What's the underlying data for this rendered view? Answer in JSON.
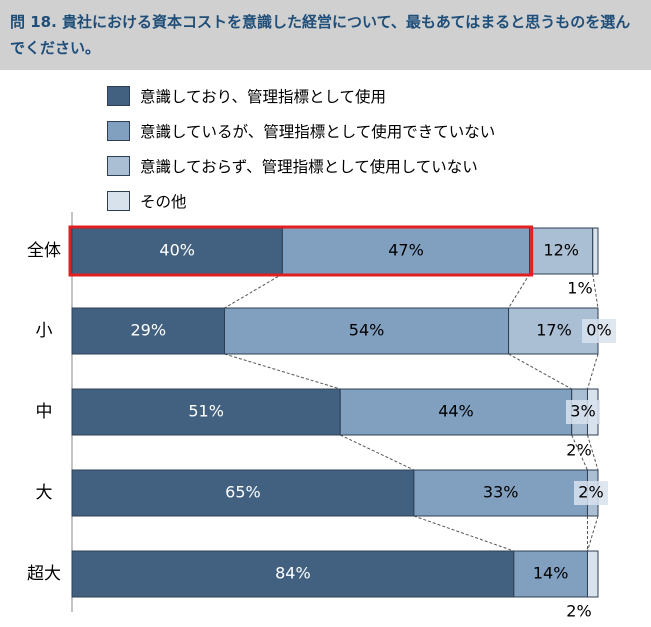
{
  "question": "問 18. 貴社における資本コストを意識した経営について、最もあてはまると思うものを選んでください。",
  "colors": {
    "header_bg": "#d0d0d0",
    "question_text": "#1f4e79",
    "highlight": "#e02020"
  },
  "chart_data": {
    "type": "bar",
    "orientation": "horizontal",
    "stacked": true,
    "percent_stacked": true,
    "title": "問 18. 貴社における資本コストを意識した経営について、最もあてはまると思うものを選んでください。",
    "categories": [
      "全体",
      "小",
      "中",
      "大",
      "超大"
    ],
    "series": [
      {
        "name": "意識しており、管理指標として使用",
        "color": "#426180",
        "label_color": "#ffffff",
        "values": [
          40,
          29,
          51,
          65,
          84
        ]
      },
      {
        "name": "意識しているが、管理指標として使用できていない",
        "color": "#819fbf",
        "label_color": "#000000",
        "values": [
          47,
          54,
          44,
          33,
          14
        ]
      },
      {
        "name": "意識しておらず、管理指標として使用していない",
        "color": "#aabfd3",
        "label_color": "#000000",
        "values": [
          12,
          17,
          3,
          2,
          0
        ]
      },
      {
        "name": "その他",
        "color": "#d8e2ed",
        "label_color": "#000000",
        "values": [
          1,
          0,
          2,
          0,
          2
        ]
      }
    ],
    "data_labels": [
      [
        "40%",
        "47%",
        "12%",
        "1%"
      ],
      [
        "29%",
        "54%",
        "17%",
        "0%"
      ],
      [
        "51%",
        "44%",
        "3%",
        "2%"
      ],
      [
        "65%",
        "33%",
        "2%",
        ""
      ],
      [
        "84%",
        "14%",
        "",
        "2%"
      ]
    ],
    "xlim": [
      0,
      100
    ],
    "highlight": "全体 first two segments outlined in red",
    "legend_position": "top"
  }
}
